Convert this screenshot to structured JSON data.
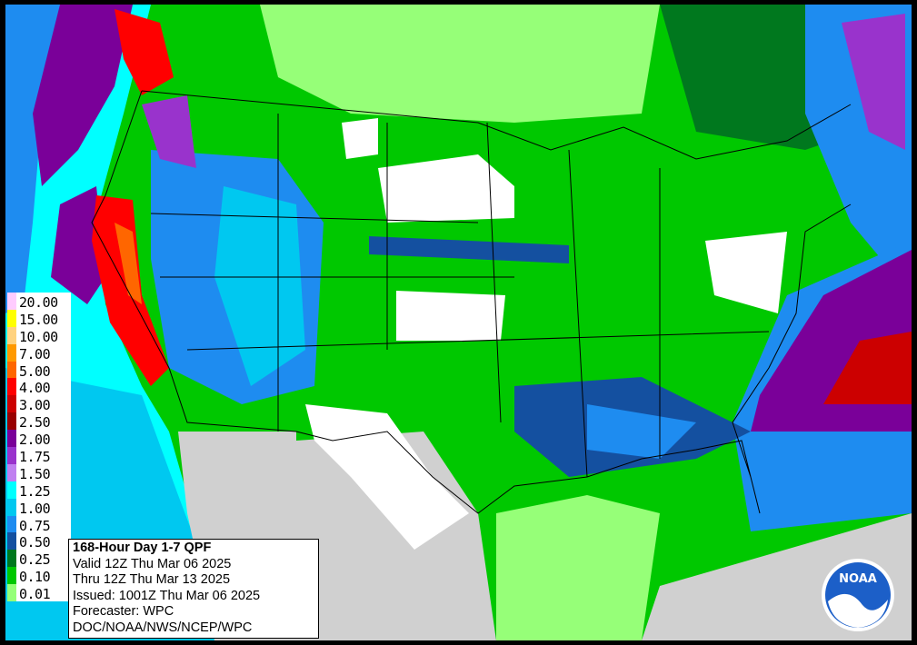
{
  "legend": {
    "items": [
      {
        "label": "20.00",
        "color": "#ffccff"
      },
      {
        "label": "15.00",
        "color": "#ffff00"
      },
      {
        "label": "10.00",
        "color": "#ffd27f"
      },
      {
        "label": "7.00",
        "color": "#ff9900"
      },
      {
        "label": "5.00",
        "color": "#ff6600"
      },
      {
        "label": "4.00",
        "color": "#ff0000"
      },
      {
        "label": "3.00",
        "color": "#cc0000"
      },
      {
        "label": "2.50",
        "color": "#990000"
      },
      {
        "label": "2.00",
        "color": "#7a0099"
      },
      {
        "label": "1.75",
        "color": "#9933cc"
      },
      {
        "label": "1.50",
        "color": "#c080f0"
      },
      {
        "label": "1.25",
        "color": "#00ffff"
      },
      {
        "label": "1.00",
        "color": "#00c8f0"
      },
      {
        "label": "0.75",
        "color": "#1e8cf0"
      },
      {
        "label": "0.50",
        "color": "#1450a0"
      },
      {
        "label": "0.25",
        "color": "#00781e"
      },
      {
        "label": "0.10",
        "color": "#00c800"
      },
      {
        "label": "0.01",
        "color": "#96ff78"
      }
    ]
  },
  "info": {
    "title": "168-Hour Day 1-7 QPF",
    "lines": [
      "Valid 12Z Thu Mar 06 2025",
      "Thru 12Z Thu Mar 13 2025",
      "Issued: 1001Z Thu Mar 06 2025",
      "Forecaster: WPC",
      "DOC/NOAA/NWS/NCEP/WPC"
    ]
  },
  "logo": {
    "text": "NOAA"
  }
}
